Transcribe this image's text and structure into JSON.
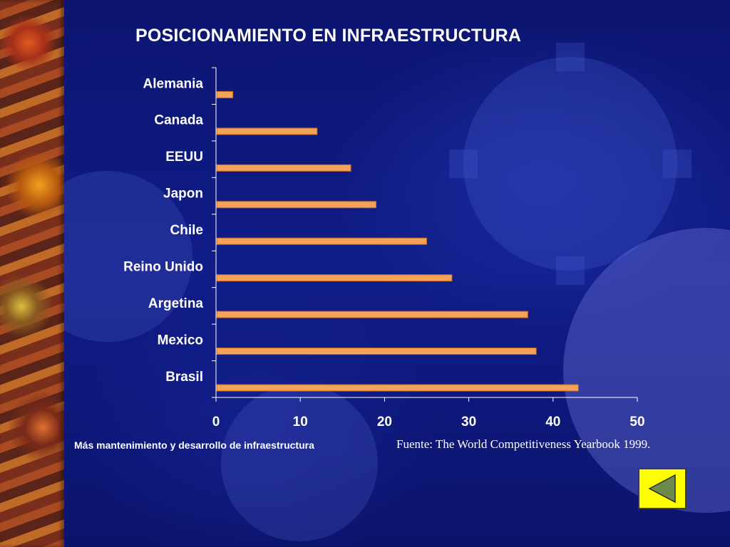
{
  "slide": {
    "title": "POSICIONAMIENTO EN INFRAESTRUCTURA",
    "footnote": "Más mantenimiento y desarrollo de infraestructura",
    "source": "Fuente: The World Competitiveness  Yearbook 1999.",
    "nav_button_icon": "triangle-left-icon",
    "colors": {
      "background": "#101c88",
      "bar": "#f5a35a",
      "bar_border": "#c46a1f",
      "button": "#ffff00",
      "arrow": "#6e8a4a"
    }
  },
  "chart_data": {
    "type": "bar",
    "orientation": "horizontal",
    "title": "POSICIONAMIENTO EN INFRAESTRUCTURA",
    "xlabel": "",
    "ylabel": "",
    "categories": [
      "Alemania",
      "Canada",
      "EEUU",
      "Japon",
      "Chile",
      "Reino Unido",
      "Argetina",
      "Mexico",
      "Brasil"
    ],
    "values": [
      2,
      12,
      16,
      19,
      25,
      28,
      37,
      38,
      43
    ],
    "xlim": [
      0,
      50
    ],
    "xticks": [
      0,
      10,
      20,
      30,
      40,
      50
    ],
    "grid": false,
    "legend": "none"
  }
}
